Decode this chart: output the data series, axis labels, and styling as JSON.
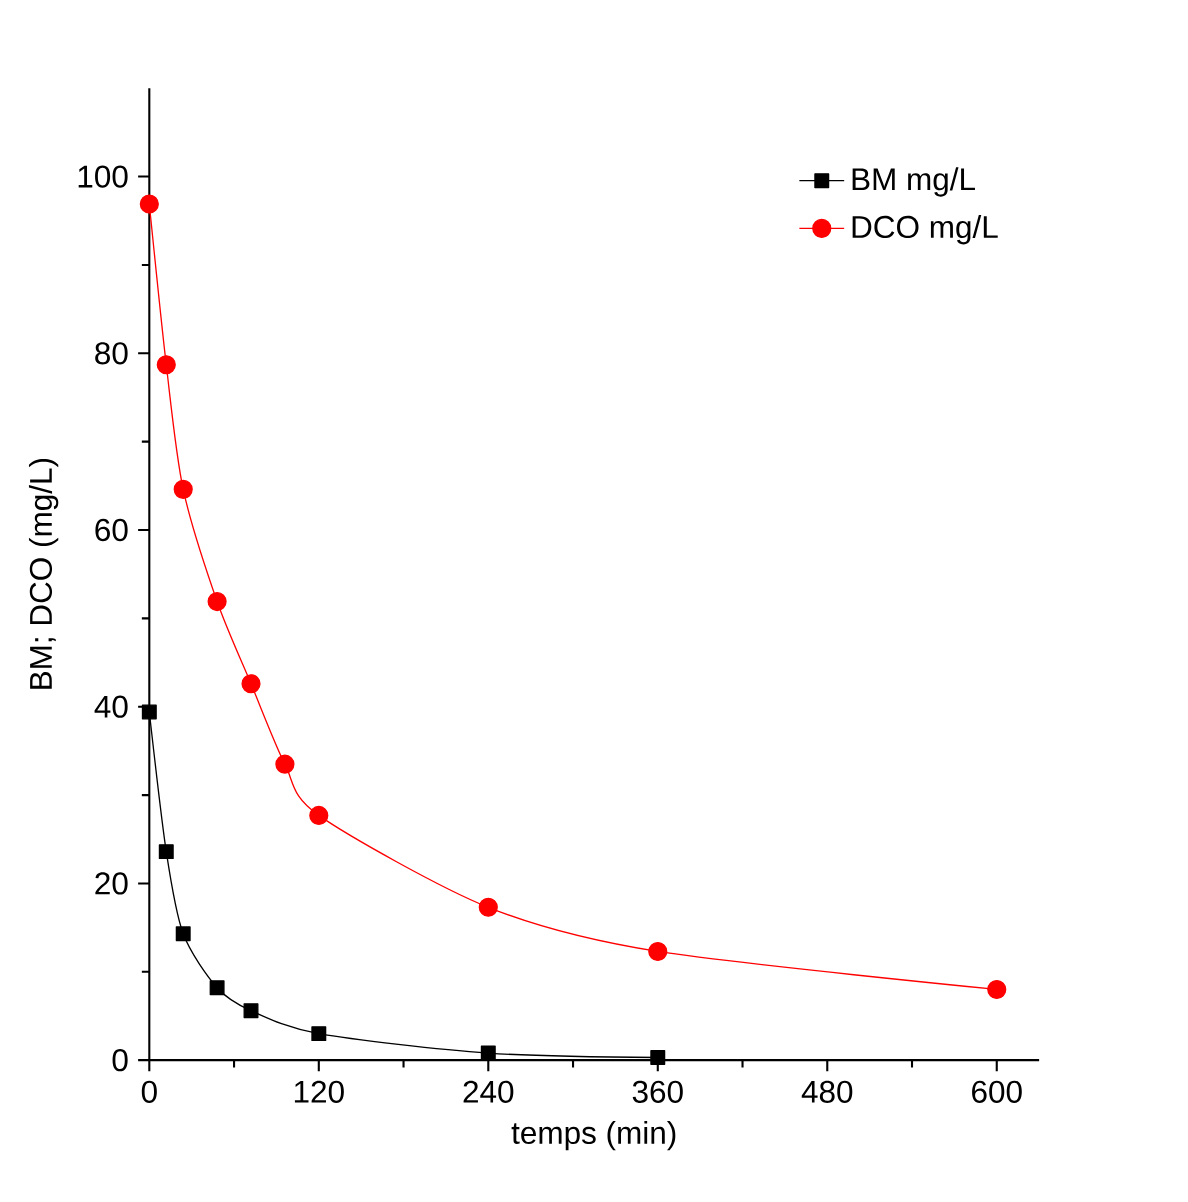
{
  "chart_data": {
    "type": "line",
    "xlabel": "temps (min)",
    "ylabel": "BM; DCO (mg/L)",
    "xlim": [
      0,
      630
    ],
    "xticks": [
      0,
      120,
      240,
      360,
      480,
      600
    ],
    "ylim": [
      0,
      110
    ],
    "yticks": [
      0,
      20,
      40,
      60,
      80,
      100
    ],
    "legend": "top right",
    "grid": false,
    "series": [
      {
        "name": "BM mg/L",
        "color": "#000000",
        "marker": "square",
        "x": [
          0,
          12,
          24,
          48,
          72,
          120,
          240,
          360
        ],
        "values": [
          39.4,
          23.6,
          14.3,
          8.2,
          5.6,
          3.0,
          0.8,
          0.3
        ]
      },
      {
        "name": "DCO mg/L",
        "color": "#ff0000",
        "marker": "circle",
        "x": [
          0,
          12,
          24,
          48,
          72,
          96,
          120,
          240,
          360,
          600
        ],
        "values": [
          96.9,
          78.7,
          64.6,
          51.9,
          42.6,
          33.5,
          27.7,
          17.3,
          12.3,
          8.0
        ]
      }
    ]
  }
}
